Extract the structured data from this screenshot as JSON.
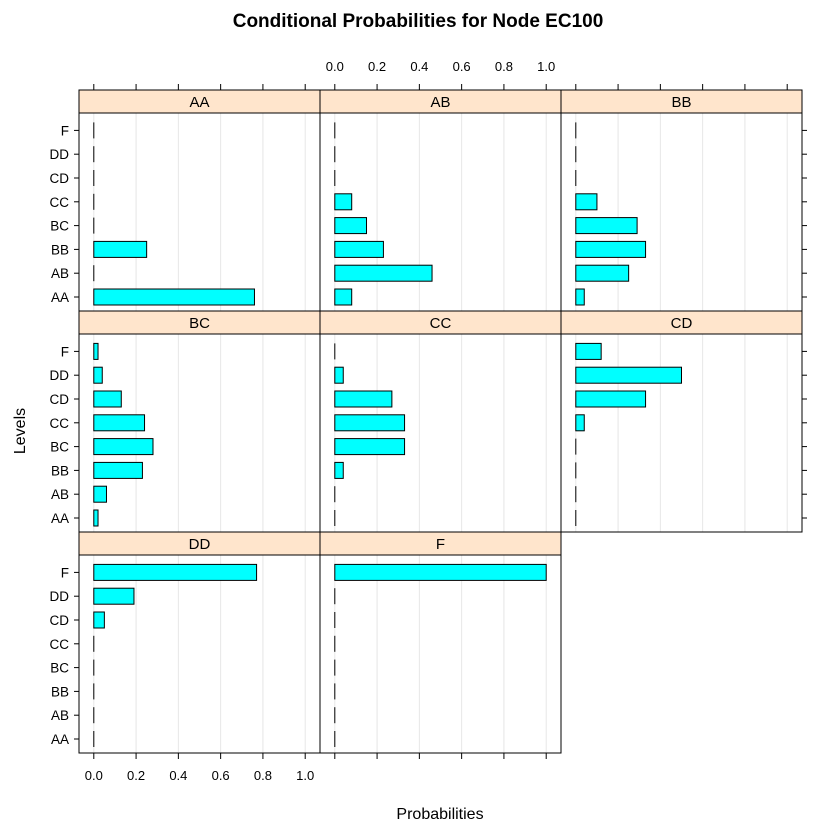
{
  "chart_data": {
    "type": "bar",
    "orientation": "horizontal",
    "title": "Conditional Probabilities for Node EC100",
    "xlabel": "Probabilities",
    "ylabel": "Levels",
    "xlim": [
      -0.07,
      1.07
    ],
    "xticks": [
      0.0,
      0.2,
      0.4,
      0.6,
      0.8,
      1.0
    ],
    "xtick_labels": [
      "0.0",
      "0.2",
      "0.4",
      "0.6",
      "0.8",
      "1.0"
    ],
    "grid": true,
    "levels": [
      "AA",
      "AB",
      "BB",
      "BC",
      "CC",
      "CD",
      "DD",
      "F"
    ],
    "panels": [
      {
        "name": "AA",
        "values": [
          0.76,
          0.0,
          0.25,
          0.0,
          0.0,
          0.0,
          0.0,
          0.0
        ]
      },
      {
        "name": "AB",
        "values": [
          0.08,
          0.46,
          0.23,
          0.15,
          0.08,
          0.0,
          0.0,
          0.0
        ]
      },
      {
        "name": "BB",
        "values": [
          0.04,
          0.25,
          0.33,
          0.29,
          0.1,
          0.0,
          0.0,
          0.0
        ]
      },
      {
        "name": "BC",
        "values": [
          0.02,
          0.06,
          0.23,
          0.28,
          0.24,
          0.13,
          0.04,
          0.02
        ]
      },
      {
        "name": "CC",
        "values": [
          0.0,
          0.0,
          0.04,
          0.33,
          0.33,
          0.27,
          0.04,
          0.0
        ]
      },
      {
        "name": "CD",
        "values": [
          0.0,
          0.0,
          0.0,
          0.0,
          0.04,
          0.33,
          0.5,
          0.12
        ]
      },
      {
        "name": "DD",
        "values": [
          0.0,
          0.0,
          0.0,
          0.0,
          0.0,
          0.05,
          0.19,
          0.77
        ]
      },
      {
        "name": "F",
        "values": [
          0.0,
          0.0,
          0.0,
          0.0,
          0.0,
          0.0,
          0.0,
          1.0
        ]
      }
    ],
    "colors": {
      "bar_fill": "#00ffff",
      "bar_stroke": "#000000",
      "strip_fill": "#ffe5cc",
      "grid": "#e6e6e6"
    }
  }
}
